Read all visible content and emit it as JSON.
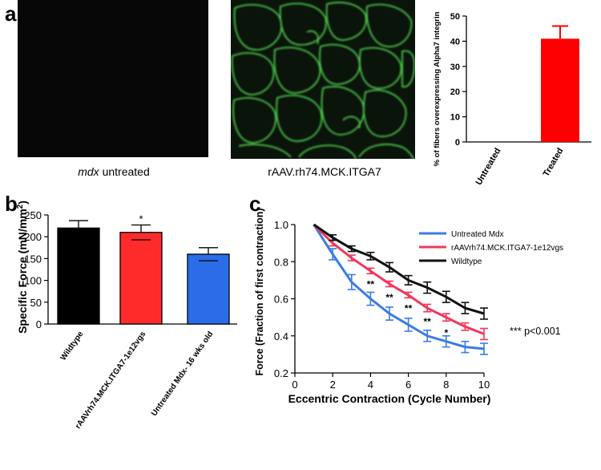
{
  "panels": {
    "a": {
      "label": "a",
      "image1_caption_italic": "mdx",
      "image1_caption_rest": " untreated",
      "image2_caption": "rAAV.rh74.MCK.ITGA7"
    },
    "b": {
      "label": "b"
    },
    "c": {
      "label": "c"
    }
  },
  "chart_data": [
    {
      "id": "a-bar",
      "type": "bar",
      "categories": [
        "Untreated",
        "Treated"
      ],
      "values": [
        0,
        41
      ],
      "errors": [
        0,
        5
      ],
      "ylabel": "% of fibers overexpressing Alpha7 integrin",
      "ylim": [
        0,
        50
      ],
      "yticks": [
        "0",
        "10",
        "20",
        "30",
        "40",
        "50"
      ],
      "colors": [
        "#ff0000",
        "#ff0000"
      ]
    },
    {
      "id": "b-bar",
      "type": "bar",
      "categories": [
        "Wildtype",
        "rAAVrh74.MCK.ITGA7-1e12vgs",
        "Untreated Mdx- 16 wks old"
      ],
      "values": [
        220,
        210,
        160
      ],
      "errors": [
        17,
        17,
        15
      ],
      "annotations": [
        "",
        "*",
        ""
      ],
      "ylabel": "Specific Force (mN/mm2)",
      "ylabel_main": "Specific Force (mN/mm",
      "ylabel_sup": "2",
      "ylabel_end": ")",
      "ylim": [
        0,
        250
      ],
      "yticks": [
        "0",
        "50",
        "100",
        "150",
        "200",
        "250"
      ],
      "colors": [
        "#000000",
        "#ff2b2b",
        "#2b6de8"
      ]
    },
    {
      "id": "c-line",
      "type": "line",
      "xlabel": "Eccentric Contraction (Cycle Number)",
      "ylabel": "Force (Fraction of first contraction)",
      "xlim": [
        0,
        10
      ],
      "ylim": [
        0.2,
        1.0
      ],
      "xticks": [
        "0",
        "2",
        "4",
        "6",
        "8",
        "10"
      ],
      "yticks": [
        "0.2",
        "0.4",
        "0.6",
        "0.8",
        "1.0"
      ],
      "x": [
        1,
        2,
        3,
        4,
        5,
        6,
        7,
        8,
        9,
        10
      ],
      "series": [
        {
          "name": "Untreated Mdx",
          "color": "#3b7be8",
          "values": [
            1.0,
            0.84,
            0.69,
            0.6,
            0.52,
            0.46,
            0.4,
            0.37,
            0.34,
            0.33
          ],
          "errors": [
            0.0,
            0.03,
            0.04,
            0.035,
            0.035,
            0.035,
            0.03,
            0.03,
            0.03,
            0.03
          ]
        },
        {
          "name": "rAAVrh74.MCK.ITGA7-1e12vgs",
          "color": "#f2385a",
          "values": [
            1.0,
            0.9,
            0.82,
            0.75,
            0.68,
            0.62,
            0.55,
            0.5,
            0.45,
            0.41
          ],
          "errors": [
            0.0,
            0.015,
            0.015,
            0.015,
            0.015,
            0.015,
            0.02,
            0.02,
            0.02,
            0.03
          ]
        },
        {
          "name": "Wildtype",
          "color": "#111111",
          "values": [
            1.0,
            0.93,
            0.87,
            0.83,
            0.77,
            0.7,
            0.66,
            0.61,
            0.55,
            0.52
          ],
          "errors": [
            0.0,
            0.015,
            0.015,
            0.02,
            0.025,
            0.025,
            0.03,
            0.03,
            0.03,
            0.03
          ]
        }
      ],
      "significance_marks": [
        {
          "x": 4,
          "y": 0.66,
          "text": "**"
        },
        {
          "x": 5,
          "y": 0.59,
          "text": "**"
        },
        {
          "x": 6,
          "y": 0.53,
          "text": "**"
        },
        {
          "x": 7,
          "y": 0.46,
          "text": "**"
        },
        {
          "x": 8,
          "y": 0.4,
          "text": "*"
        }
      ],
      "pvalue_note": "*** p<0.001"
    }
  ]
}
